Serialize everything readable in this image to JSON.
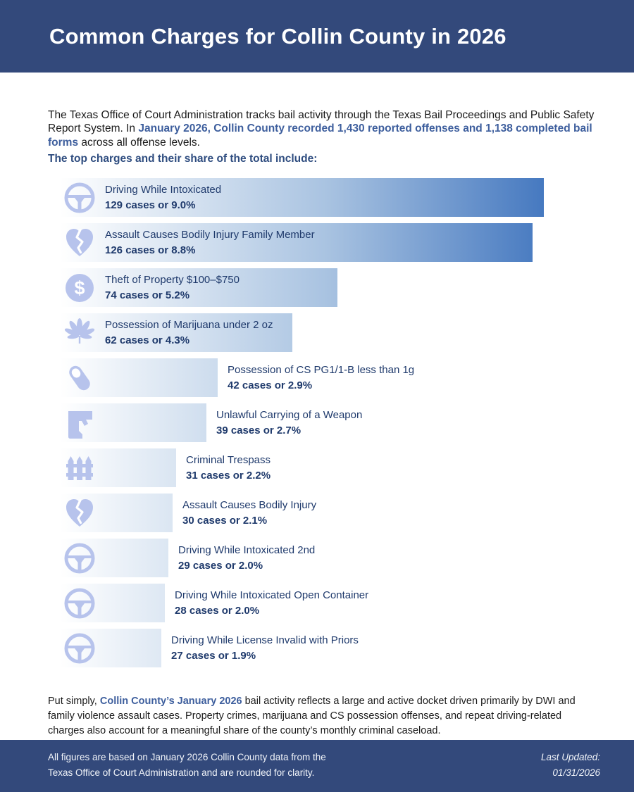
{
  "colors": {
    "navy_band": "#33497B",
    "accent_text": "#3D5E9D",
    "heading_text": "#2E4C7F",
    "bar_text": "#1F3A6C",
    "icon_fill": "#B7C3EC",
    "bar_gradient_start": "#FFFFFF",
    "bar_gradient_mid": "#A9C3E1",
    "bar_gradient_end": "#4679C0"
  },
  "header": {
    "title": "Common Charges for Collin County in 2026"
  },
  "intro": {
    "text_before": "The Texas Office of Court Administration tracks bail activity through the Texas Bail Proceedings and Public Safety Report System. In ",
    "text_highlight": "January 2026, Collin County recorded 1,430 reported offenses and 1,138 completed bail forms",
    "text_after": " across all offense levels."
  },
  "chart_heading": "The top charges and their share of the total include:",
  "chart_data": {
    "type": "bar",
    "orientation": "horizontal",
    "value_unit": "cases",
    "max_value": 129,
    "rows": [
      {
        "label": "Driving While Intoxicated",
        "cases": 129,
        "percent": "9.0%",
        "stat": "129 cases or 9.0%",
        "icon": "steering-wheel",
        "label_inside": true
      },
      {
        "label": "Assault Causes Bodily Injury Family Member",
        "cases": 126,
        "percent": "8.8%",
        "stat": "126 cases or 8.8%",
        "icon": "broken-heart",
        "label_inside": true
      },
      {
        "label": "Theft of Property $100–$750",
        "cases": 74,
        "percent": "5.2%",
        "stat": "74 cases or 5.2%",
        "icon": "dollar-circle",
        "label_inside": true
      },
      {
        "label": "Possession of Marijuana under 2 oz",
        "cases": 62,
        "percent": "4.3%",
        "stat": "62 cases or 4.3%",
        "icon": "cannabis-leaf",
        "label_inside": true
      },
      {
        "label": "Possession of CS PG1/1-B less than 1g",
        "cases": 42,
        "percent": "2.9%",
        "stat": "42 cases or 2.9%",
        "icon": "pill",
        "label_inside": false
      },
      {
        "label": "Unlawful Carrying of a Weapon",
        "cases": 39,
        "percent": "2.7%",
        "stat": "39 cases or 2.7%",
        "icon": "handgun",
        "label_inside": false
      },
      {
        "label": "Criminal Trespass",
        "cases": 31,
        "percent": "2.2%",
        "stat": "31 cases or 2.2%",
        "icon": "fence",
        "label_inside": false
      },
      {
        "label": "Assault Causes Bodily Injury",
        "cases": 30,
        "percent": "2.1%",
        "stat": "30 cases or 2.1%",
        "icon": "broken-heart",
        "label_inside": false
      },
      {
        "label": "Driving While Intoxicated 2nd",
        "cases": 29,
        "percent": "2.0%",
        "stat": "29 cases or 2.0%",
        "icon": "steering-wheel",
        "label_inside": false
      },
      {
        "label": "Driving While Intoxicated Open Container",
        "cases": 28,
        "percent": "2.0%",
        "stat": "28 cases or 2.0%",
        "icon": "steering-wheel",
        "label_inside": false
      },
      {
        "label": "Driving While License Invalid with Priors",
        "cases": 27,
        "percent": "1.9%",
        "stat": "27 cases or 1.9%",
        "icon": "steering-wheel",
        "label_inside": false
      }
    ]
  },
  "summary": {
    "text_before": "Put simply, ",
    "text_highlight": "Collin County’s January 2026",
    "text_after": " bail activity reflects a large and active docket driven primarily by DWI and family violence assault cases. Property crimes, marijuana and CS possession offenses, and repeat driving-related charges also account for a meaningful share of the county’s monthly criminal caseload."
  },
  "footer": {
    "note_line1": "All figures are based on January 2026 Collin County data from the",
    "note_line2": "Texas Office of Court Administration and are rounded for clarity.",
    "updated_label": "Last Updated:",
    "updated_date": "01/31/2026"
  }
}
